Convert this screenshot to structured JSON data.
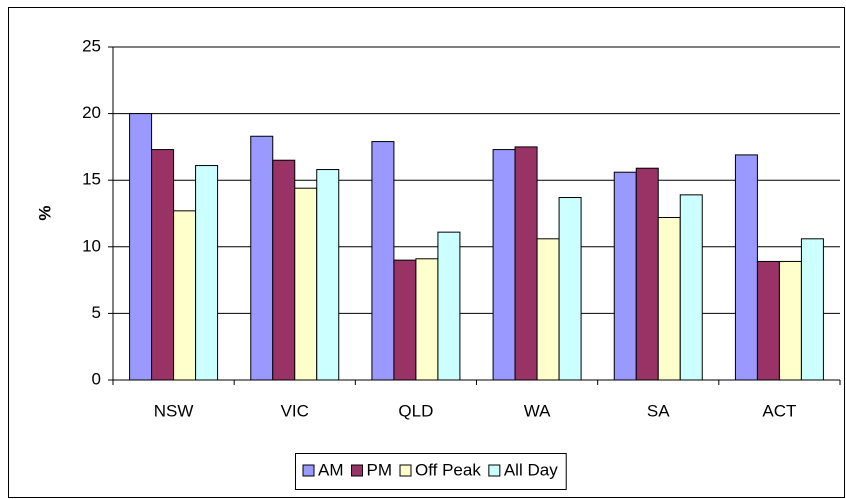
{
  "chart_data": {
    "type": "bar",
    "y_label": "%",
    "categories": [
      "NSW",
      "VIC",
      "QLD",
      "WA",
      "SA",
      "ACT"
    ],
    "series": [
      {
        "name": "AM",
        "color": "#9999ff",
        "values": [
          20.0,
          18.3,
          17.9,
          17.3,
          15.6,
          16.9
        ]
      },
      {
        "name": "PM",
        "color": "#993366",
        "values": [
          17.3,
          16.5,
          9.0,
          17.5,
          15.9,
          8.9
        ]
      },
      {
        "name": "Off Peak",
        "color": "#ffffcc",
        "values": [
          12.7,
          14.4,
          9.1,
          10.6,
          12.2,
          8.9
        ]
      },
      {
        "name": "All Day",
        "color": "#ccffff",
        "values": [
          16.1,
          15.8,
          11.1,
          13.7,
          13.9,
          10.6
        ]
      }
    ],
    "ylim": [
      0,
      25
    ],
    "yticks": [
      0,
      5,
      10,
      15,
      20,
      25
    ],
    "grid": true,
    "legend": "bottom"
  }
}
